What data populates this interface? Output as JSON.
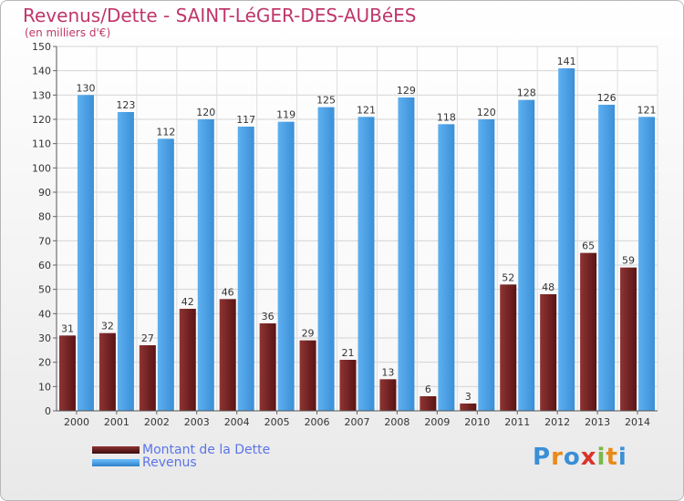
{
  "header": {
    "title": "Revenus/Dette - SAINT-LéGER-DES-AUBéES",
    "subtitle": "(en milliers d'€)"
  },
  "legend": {
    "debt_label": "Montant de la Dette",
    "revenue_label": "Revenus"
  },
  "logo": {
    "text": "Proxiti"
  },
  "colors": {
    "debt": "#7b2a2a",
    "revenue": "#4aa0e6",
    "title": "#c0366a",
    "legend_text": "#5a74e8"
  },
  "chart_data": {
    "type": "bar",
    "title": "Revenus/Dette - SAINT-LéGER-DES-AUBéES",
    "subtitle": "(en milliers d'€)",
    "xlabel": "",
    "ylabel": "",
    "categories": [
      "2000",
      "2001",
      "2002",
      "2003",
      "2004",
      "2005",
      "2006",
      "2007",
      "2008",
      "2009",
      "2010",
      "2011",
      "2012",
      "2013",
      "2014"
    ],
    "series": [
      {
        "name": "Montant de la Dette",
        "values": [
          31,
          32,
          27,
          42,
          46,
          36,
          29,
          21,
          13,
          6,
          3,
          52,
          48,
          65,
          59
        ]
      },
      {
        "name": "Revenus",
        "values": [
          130,
          123,
          112,
          120,
          117,
          119,
          125,
          121,
          129,
          118,
          120,
          128,
          141,
          126,
          121
        ]
      }
    ],
    "ylim": [
      0,
      150
    ],
    "ytick_step": 10,
    "grid": true,
    "legend_position": "bottom-left"
  }
}
